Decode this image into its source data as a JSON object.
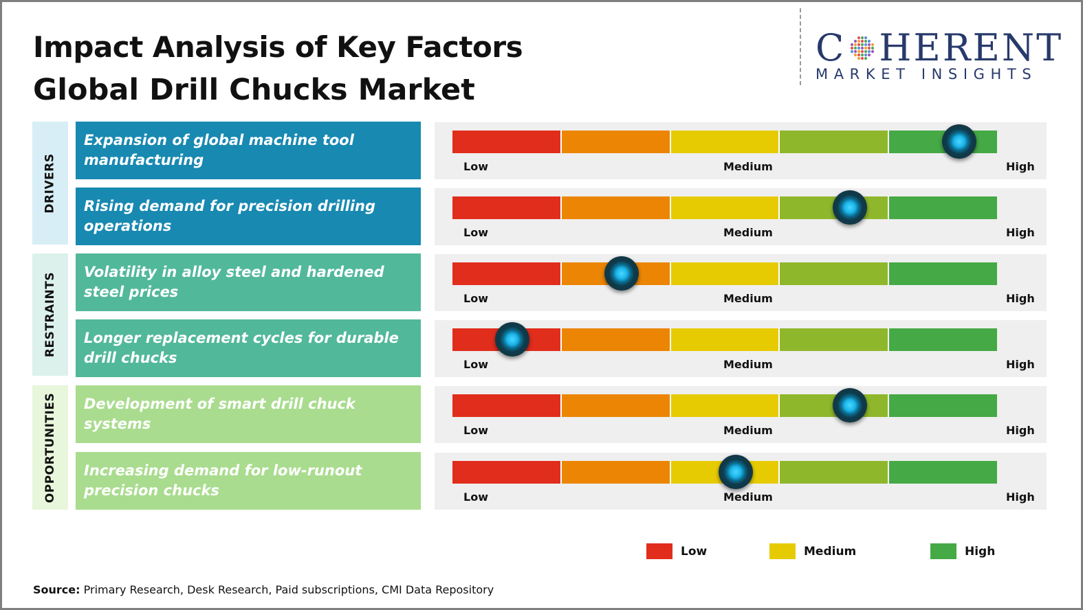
{
  "header": {
    "title": "Impact Analysis of Key Factors",
    "subtitle": "Global Drill Chucks Market"
  },
  "logo": {
    "word_left": "C",
    "word_right": "HERENT",
    "sub": "MARKET INSIGHTS",
    "colors": [
      "#283a6b",
      "#e05252",
      "#52a65b",
      "#5a8fd6",
      "#9b59b6",
      "#f0a030"
    ]
  },
  "scale": {
    "low_label": "Low",
    "medium_label": "Medium",
    "high_label": "High",
    "segment_colors": [
      "#e12d1c",
      "#ec8503",
      "#e6cb03",
      "#8fb72b",
      "#45a945"
    ]
  },
  "categories": [
    {
      "label": "DRIVERS",
      "color": "#1889b1"
    },
    {
      "label": "RESTRAINTS",
      "color": "#52b89a"
    },
    {
      "label": "OPPORTUNITIES",
      "color": "#a9dc8e"
    }
  ],
  "factors": [
    {
      "category": "DRIVERS",
      "text": "Expansion of global machine tool manufacturing",
      "impact": 0.93
    },
    {
      "category": "DRIVERS",
      "text": "Rising demand for precision drilling operations",
      "impact": 0.73
    },
    {
      "category": "RESTRAINTS",
      "text": "Volatility in alloy steel and hardened steel prices",
      "impact": 0.31
    },
    {
      "category": "RESTRAINTS",
      "text": "Longer replacement cycles for durable drill chucks",
      "impact": 0.11
    },
    {
      "category": "OPPORTUNITIES",
      "text": "Development of smart drill chuck systems",
      "impact": 0.73
    },
    {
      "category": "OPPORTUNITIES",
      "text": "Increasing demand for low-runout precision chucks",
      "impact": 0.52
    }
  ],
  "legend": [
    {
      "label": "Low",
      "color": "#e12d1c"
    },
    {
      "label": "Medium",
      "color": "#e6cb03"
    },
    {
      "label": "High",
      "color": "#45a945"
    }
  ],
  "source": {
    "prefix": "Source:",
    "text": " Primary Research, Desk Research, Paid subscriptions, CMI Data Repository"
  }
}
